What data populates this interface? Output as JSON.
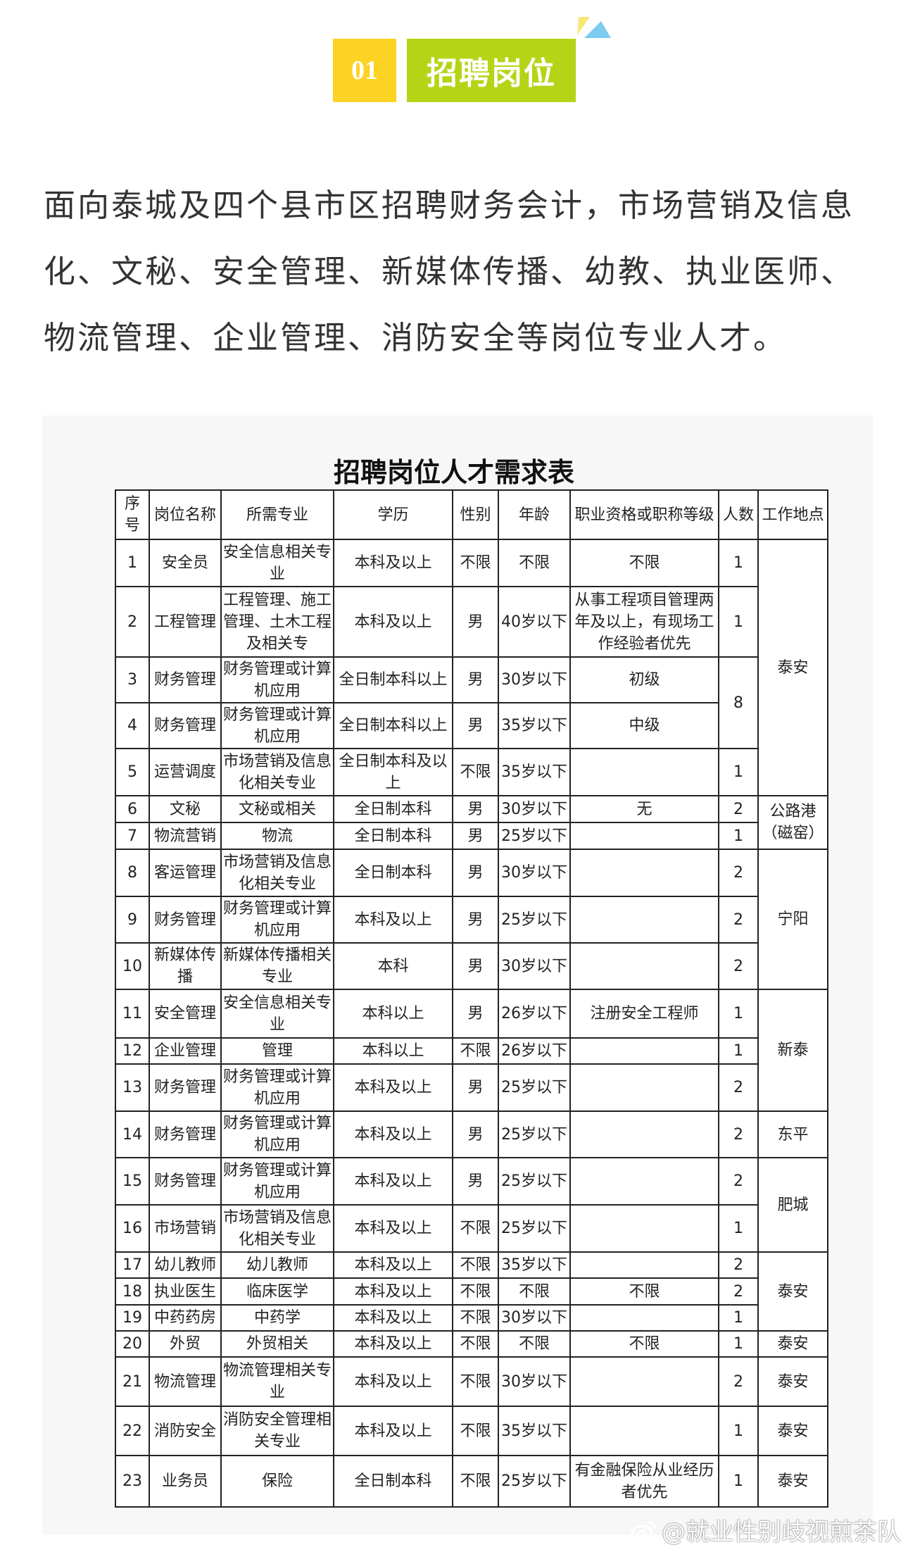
{
  "section": {
    "number": "01",
    "title": "招聘岗位"
  },
  "intro": "面向泰城及四个县市区招聘财务会计，市场营销及信息化、文秘、安全管理、新媒体传播、幼教、执业医师、物流管理、企业管理、消防安全等岗位专业人才。",
  "table": {
    "title": "招聘岗位人才需求表",
    "headers": [
      "序号",
      "岗位名称",
      "所需专业",
      "学历",
      "性别",
      "年龄",
      "职业资格或职称等级",
      "人数",
      "工作地点"
    ],
    "rows": [
      {
        "no": "1",
        "post": "安全员",
        "major": "安全信息相关专业",
        "edu": "本科及以上",
        "sex": "不限",
        "age": "不限",
        "qual": "不限",
        "count": "1",
        "location": "泰安",
        "location_span": 5
      },
      {
        "no": "2",
        "post": "工程管理",
        "major": "工程管理、施工管理、土木工程及相关专",
        "edu": "本科及以上",
        "sex": "男",
        "age": "40岁以下",
        "qual": "从事工程项目管理两年及以上，有现场工作经验者优先",
        "count": "1"
      },
      {
        "no": "3",
        "post": "财务管理",
        "major": "财务管理或计算机应用",
        "edu": "全日制本科以上",
        "sex": "男",
        "age": "30岁以下",
        "qual": "初级",
        "count": "8",
        "count_span": 2
      },
      {
        "no": "4",
        "post": "财务管理",
        "major": "财务管理或计算机应用",
        "edu": "全日制本科以上",
        "sex": "男",
        "age": "35岁以下",
        "qual": "中级"
      },
      {
        "no": "5",
        "post": "运营调度",
        "major": "市场营销及信息化相关专业",
        "edu": "全日制本科及以上",
        "sex": "不限",
        "age": "35岁以下",
        "qual": "",
        "count": "1"
      },
      {
        "no": "6",
        "post": "文秘",
        "major": "文秘或相关",
        "edu": "全日制本科",
        "sex": "男",
        "age": "30岁以下",
        "qual": "无",
        "count": "2",
        "location": "公路港（磁窑）",
        "location_span": 2
      },
      {
        "no": "7",
        "post": "物流营销",
        "major": "物流",
        "edu": "全日制本科",
        "sex": "男",
        "age": "25岁以下",
        "qual": "",
        "count": "1"
      },
      {
        "no": "8",
        "post": "客运管理",
        "major": "市场营销及信息化相关专业",
        "edu": "全日制本科",
        "sex": "男",
        "age": "30岁以下",
        "qual": "",
        "count": "2",
        "location": "宁阳",
        "location_span": 3
      },
      {
        "no": "9",
        "post": "财务管理",
        "major": "财务管理或计算机应用",
        "edu": "本科及以上",
        "sex": "男",
        "age": "25岁以下",
        "qual": "",
        "count": "2"
      },
      {
        "no": "10",
        "post": "新媒体传播",
        "major": "新媒体传播相关专业",
        "edu": "本科",
        "sex": "男",
        "age": "30岁以下",
        "qual": "",
        "count": "2"
      },
      {
        "no": "11",
        "post": "安全管理",
        "major": "安全信息相关专业",
        "edu": "本科以上",
        "sex": "男",
        "age": "26岁以下",
        "qual": "注册安全工程师",
        "count": "1",
        "location": "新泰",
        "location_span": 3
      },
      {
        "no": "12",
        "post": "企业管理",
        "major": "管理",
        "edu": "本科以上",
        "sex": "不限",
        "age": "26岁以下",
        "qual": "",
        "count": "1"
      },
      {
        "no": "13",
        "post": "财务管理",
        "major": "财务管理或计算机应用",
        "edu": "本科及以上",
        "sex": "男",
        "age": "25岁以下",
        "qual": "",
        "count": "2"
      },
      {
        "no": "14",
        "post": "财务管理",
        "major": "财务管理或计算机应用",
        "edu": "本科及以上",
        "sex": "男",
        "age": "25岁以下",
        "qual": "",
        "count": "2",
        "location": "东平",
        "location_span": 1
      },
      {
        "no": "15",
        "post": "财务管理",
        "major": "财务管理或计算机应用",
        "edu": "本科及以上",
        "sex": "男",
        "age": "25岁以下",
        "qual": "",
        "count": "2",
        "location": "肥城",
        "location_span": 2
      },
      {
        "no": "16",
        "post": "市场营销",
        "major": "市场营销及信息化相关专业",
        "edu": "本科及以上",
        "sex": "不限",
        "age": "25岁以下",
        "qual": "",
        "count": "1"
      },
      {
        "no": "17",
        "post": "幼儿教师",
        "major": "幼儿教师",
        "edu": "本科及以上",
        "sex": "不限",
        "age": "35岁以下",
        "qual": "",
        "count": "2",
        "location": "泰安",
        "location_span": 3
      },
      {
        "no": "18",
        "post": "执业医生",
        "major": "临床医学",
        "edu": "本科及以上",
        "sex": "不限",
        "age": "不限",
        "qual": "不限",
        "count": "2"
      },
      {
        "no": "19",
        "post": "中药药房",
        "major": "中药学",
        "edu": "本科及以上",
        "sex": "不限",
        "age": "30岁以下",
        "qual": "",
        "count": "1"
      },
      {
        "no": "20",
        "post": "外贸",
        "major": "外贸相关",
        "edu": "本科及以上",
        "sex": "不限",
        "age": "不限",
        "qual": "不限",
        "count": "1",
        "location": "泰安",
        "location_span": 1
      },
      {
        "no": "21",
        "post": "物流管理",
        "major": "物流管理相关专业",
        "edu": "本科及以上",
        "sex": "不限",
        "age": "30岁以下",
        "qual": "",
        "count": "2",
        "location": "泰安",
        "location_span": 1
      },
      {
        "no": "22",
        "post": "消防安全",
        "major": "消防安全管理相关专业",
        "edu": "本科及以上",
        "sex": "不限",
        "age": "35岁以下",
        "qual": "",
        "count": "1",
        "location": "泰安",
        "location_span": 1
      },
      {
        "no": "23",
        "post": "业务员",
        "major": "保险",
        "edu": "全日制本科",
        "sex": "不限",
        "age": "25岁以下",
        "qual": "有金融保险从业经历者优先",
        "count": "1",
        "location": "泰安",
        "location_span": 1
      }
    ]
  },
  "watermark": {
    "icon": "weibo-icon",
    "text": "@就业性别歧视煎茶队"
  },
  "colors": {
    "badge_number": "#fcd224",
    "badge_title": "#b6d416",
    "deco_yellow": "#f9e77a",
    "deco_blue": "#7ecbf1"
  }
}
